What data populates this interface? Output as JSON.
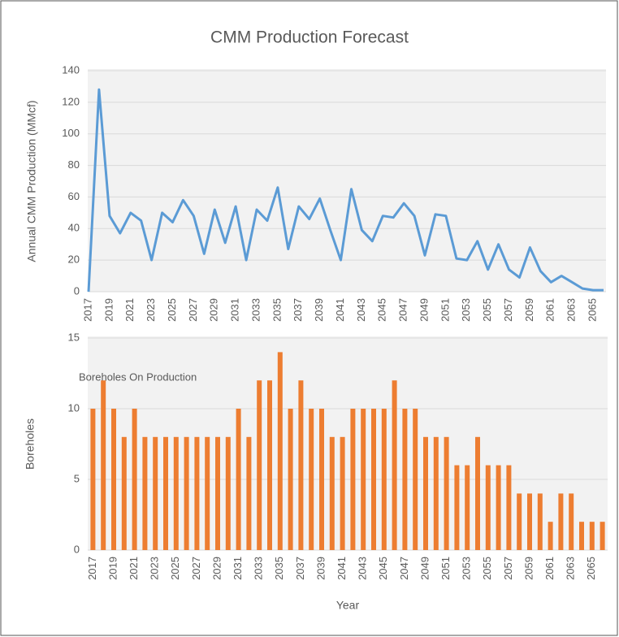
{
  "chart_data": [
    {
      "type": "line",
      "title": "CMM Production Forecast",
      "x_label": "Year",
      "y_label": "Annual CMM Production (MMcf)",
      "categories": [
        2017,
        null,
        2019,
        null,
        2021,
        null,
        2023,
        null,
        2025,
        null,
        2027,
        null,
        2029,
        null,
        2031,
        null,
        2033,
        null,
        2035,
        null,
        2037,
        null,
        2039,
        null,
        2041,
        null,
        2043,
        null,
        2045,
        null,
        2047,
        null,
        2049,
        null,
        2051,
        null,
        2053,
        null,
        2055,
        null,
        2057,
        null,
        2059,
        null,
        2061,
        null,
        2063,
        null,
        2065,
        null
      ],
      "values": [
        0,
        128,
        48,
        37,
        50,
        45,
        20,
        50,
        44,
        58,
        48,
        24,
        52,
        31,
        54,
        20,
        52,
        45,
        66,
        27,
        54,
        46,
        59,
        39,
        20,
        65,
        39,
        32,
        48,
        47,
        56,
        48,
        23,
        49,
        48,
        21,
        20,
        32,
        14,
        30,
        14,
        9,
        28,
        13,
        6,
        10,
        6,
        2,
        1,
        1
      ],
      "color": "#5b9bd5",
      "ylim": [
        0,
        140
      ],
      "yticks": [
        0,
        20,
        40,
        60,
        80,
        100,
        120,
        140
      ],
      "grid": true
    },
    {
      "type": "bar",
      "title": "Boreholes On Production",
      "x_label": "Year",
      "y_label": "Boreholes",
      "categories": [
        2017,
        null,
        2019,
        null,
        2021,
        null,
        2023,
        null,
        2025,
        null,
        2027,
        null,
        2029,
        null,
        2031,
        null,
        2033,
        null,
        2035,
        null,
        2037,
        null,
        2039,
        null,
        2041,
        null,
        2043,
        null,
        2045,
        null,
        2047,
        null,
        2049,
        null,
        2051,
        null,
        2053,
        null,
        2055,
        null,
        2057,
        null,
        2059,
        null,
        2061,
        null,
        2063,
        null,
        2065,
        null
      ],
      "values": [
        10,
        12,
        10,
        8,
        10,
        8,
        8,
        8,
        8,
        8,
        8,
        8,
        8,
        8,
        10,
        8,
        12,
        12,
        14,
        10,
        12,
        10,
        10,
        8,
        8,
        10,
        10,
        10,
        10,
        12,
        10,
        10,
        8,
        8,
        8,
        6,
        6,
        8,
        6,
        6,
        6,
        4,
        4,
        4,
        2,
        4,
        4,
        2,
        2,
        2
      ],
      "color": "#ed7d31",
      "ylim": [
        0,
        15
      ],
      "yticks": [
        0,
        5,
        10,
        15
      ],
      "grid": true
    }
  ]
}
